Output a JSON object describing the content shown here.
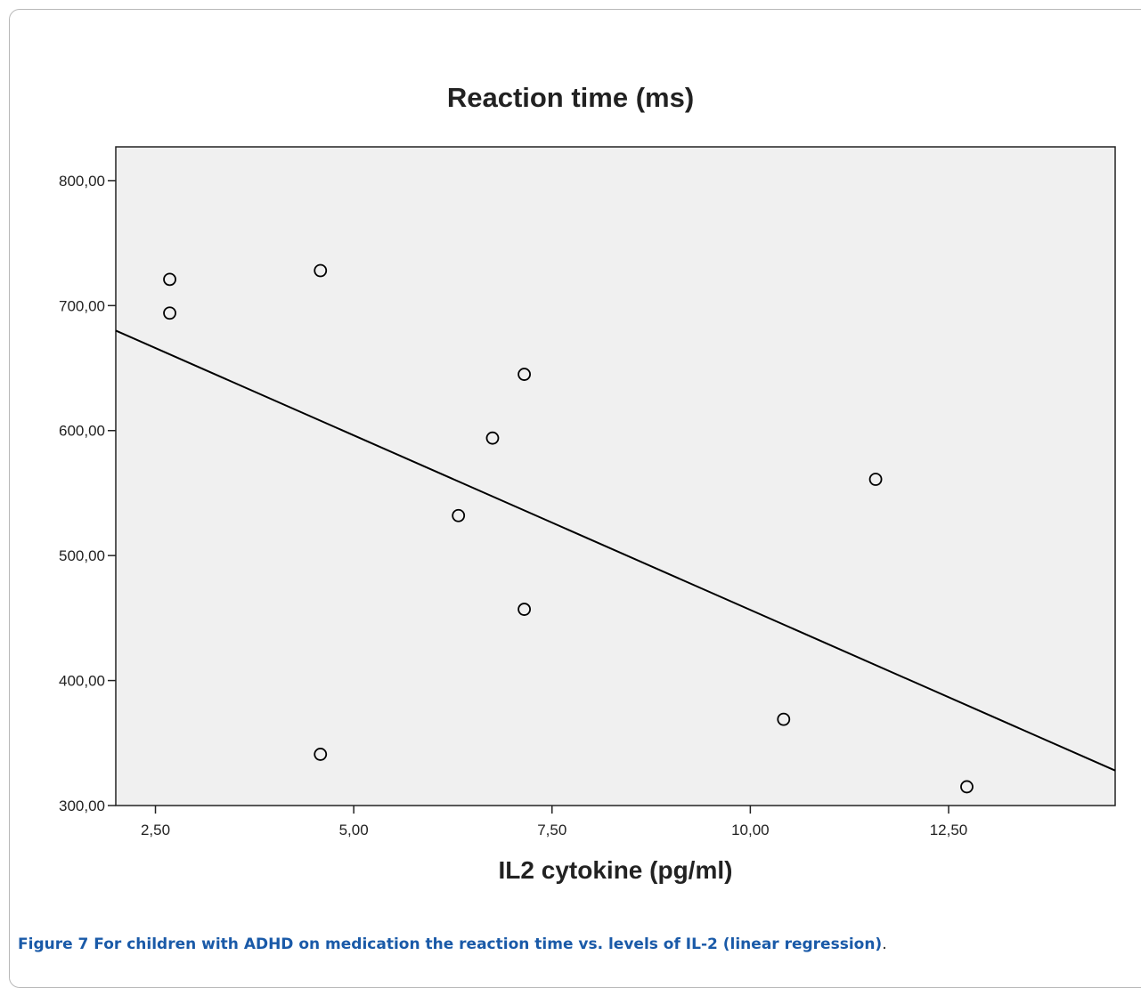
{
  "chart_data": {
    "type": "scatter",
    "title": "Reaction time (ms)",
    "xlabel": "IL2 cytokine (pg/ml)",
    "ylabel": "",
    "xlim": [
      2.0,
      14.6
    ],
    "ylim": [
      300,
      827
    ],
    "x_ticks": [
      2.5,
      5.0,
      7.5,
      10.0,
      12.5
    ],
    "x_tick_labels": [
      "2,50",
      "5,00",
      "7,50",
      "10,00",
      "12,50"
    ],
    "y_ticks": [
      300,
      400,
      500,
      600,
      700,
      800
    ],
    "y_tick_labels": [
      "300,00",
      "400,00",
      "500,00",
      "600,00",
      "700,00",
      "800,00"
    ],
    "points": [
      {
        "x": 2.68,
        "y": 721
      },
      {
        "x": 2.68,
        "y": 694
      },
      {
        "x": 4.58,
        "y": 728
      },
      {
        "x": 4.58,
        "y": 341
      },
      {
        "x": 6.32,
        "y": 532
      },
      {
        "x": 6.75,
        "y": 594
      },
      {
        "x": 7.15,
        "y": 645
      },
      {
        "x": 7.15,
        "y": 457
      },
      {
        "x": 10.42,
        "y": 369
      },
      {
        "x": 11.58,
        "y": 561
      },
      {
        "x": 12.73,
        "y": 315
      }
    ],
    "regression_line": {
      "x": [
        2.0,
        14.6
      ],
      "y": [
        680,
        328
      ]
    },
    "grid": false,
    "colors": {
      "plot_background": "#f0f0f0",
      "marker": "#000000",
      "line": "#000000"
    }
  },
  "caption": {
    "label": "Figure 7",
    "text": " For children with ADHD on medication the reaction time vs. levels of IL-2 (linear regression)",
    "end": "."
  }
}
